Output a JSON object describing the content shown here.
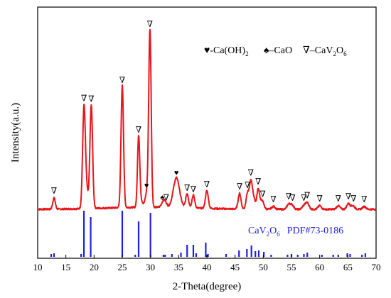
{
  "chart_data": {
    "type": "line",
    "xlabel": "2-Theta(degree)",
    "ylabel": "Intensity(a.u.)",
    "xlim": [
      10,
      70
    ],
    "x_ticks": [
      10,
      15,
      20,
      25,
      30,
      35,
      40,
      45,
      50,
      55,
      60,
      65,
      70
    ],
    "legend": {
      "placement": "top-right",
      "entries": [
        {
          "symbol": "♥",
          "label": "-Ca(OH)",
          "sub": "2"
        },
        {
          "symbol": "♠",
          "label": "–CaO",
          "sub": ""
        },
        {
          "symbol": "∇",
          "label": "–CaV",
          "sub": "2",
          "label2": "O",
          "sub2": "6"
        }
      ]
    },
    "reference": {
      "label_main": "CaV",
      "label_sub1": "2",
      "label_o": "O",
      "label_sub2": "6",
      "label_pdf": "PDF#73-0186",
      "color": "#1f1fe0",
      "lines": [
        {
          "x": 12.4,
          "h": 4
        },
        {
          "x": 12.9,
          "h": 5
        },
        {
          "x": 17.7,
          "h": 4
        },
        {
          "x": 18.2,
          "h": 65
        },
        {
          "x": 19.4,
          "h": 56
        },
        {
          "x": 25.0,
          "h": 65
        },
        {
          "x": 27.3,
          "h": 3
        },
        {
          "x": 27.9,
          "h": 50
        },
        {
          "x": 30.0,
          "h": 62
        },
        {
          "x": 32.3,
          "h": 3
        },
        {
          "x": 32.6,
          "h": 3
        },
        {
          "x": 33.8,
          "h": 4
        },
        {
          "x": 35.4,
          "h": 6
        },
        {
          "x": 36.5,
          "h": 17
        },
        {
          "x": 37.6,
          "h": 17
        },
        {
          "x": 38.1,
          "h": 5
        },
        {
          "x": 39.8,
          "h": 20
        },
        {
          "x": 40.2,
          "h": 4
        },
        {
          "x": 43.4,
          "h": 4
        },
        {
          "x": 45.7,
          "h": 9
        },
        {
          "x": 47.1,
          "h": 11
        },
        {
          "x": 47.9,
          "h": 16
        },
        {
          "x": 48.6,
          "h": 8
        },
        {
          "x": 49.2,
          "h": 9
        },
        {
          "x": 50.1,
          "h": 7
        },
        {
          "x": 51.4,
          "h": 3
        },
        {
          "x": 54.3,
          "h": 3
        },
        {
          "x": 55.0,
          "h": 4
        },
        {
          "x": 56.1,
          "h": 3
        },
        {
          "x": 57.2,
          "h": 4
        },
        {
          "x": 57.8,
          "h": 6
        },
        {
          "x": 60.4,
          "h": 3
        },
        {
          "x": 62.4,
          "h": 3
        },
        {
          "x": 63.3,
          "h": 3
        },
        {
          "x": 64.9,
          "h": 5
        },
        {
          "x": 65.4,
          "h": 4
        },
        {
          "x": 67.5,
          "h": 3
        },
        {
          "x": 68.1,
          "h": 5
        }
      ]
    },
    "pattern": {
      "color": "#e8161b",
      "peaks": [
        {
          "x": 12.9,
          "h": 16,
          "w": 0.22
        },
        {
          "x": 18.2,
          "h": 135,
          "w": 0.24
        },
        {
          "x": 18.6,
          "h": 28,
          "w": 0.3
        },
        {
          "x": 19.5,
          "h": 145,
          "w": 0.24
        },
        {
          "x": 25.0,
          "h": 172,
          "w": 0.22
        },
        {
          "x": 27.9,
          "h": 100,
          "w": 0.2
        },
        {
          "x": 28.4,
          "h": 8,
          "w": 0.3
        },
        {
          "x": 29.3,
          "h": 18,
          "w": 0.25
        },
        {
          "x": 29.9,
          "h": 250,
          "w": 0.22
        },
        {
          "x": 32.2,
          "h": 6,
          "w": 0.3
        },
        {
          "x": 32.6,
          "h": 7,
          "w": 0.3
        },
        {
          "x": 34.6,
          "h": 42,
          "w": 0.55
        },
        {
          "x": 36.5,
          "h": 20,
          "w": 0.25
        },
        {
          "x": 37.6,
          "h": 18,
          "w": 0.25
        },
        {
          "x": 40.0,
          "h": 25,
          "w": 0.25
        },
        {
          "x": 45.8,
          "h": 22,
          "w": 0.25
        },
        {
          "x": 47.2,
          "h": 22,
          "w": 0.25
        },
        {
          "x": 47.8,
          "h": 38,
          "w": 0.25
        },
        {
          "x": 48.3,
          "h": 15,
          "w": 0.25
        },
        {
          "x": 49.1,
          "h": 28,
          "w": 0.25
        },
        {
          "x": 49.8,
          "h": 12,
          "w": 0.3
        },
        {
          "x": 51.8,
          "h": 4,
          "w": 0.3
        },
        {
          "x": 54.5,
          "h": 7,
          "w": 0.3
        },
        {
          "x": 55.1,
          "h": 6,
          "w": 0.3
        },
        {
          "x": 57.2,
          "h": 5,
          "w": 0.3
        },
        {
          "x": 57.8,
          "h": 9,
          "w": 0.3
        },
        {
          "x": 60.0,
          "h": 5,
          "w": 0.3
        },
        {
          "x": 63.3,
          "h": 5,
          "w": 0.3
        },
        {
          "x": 65.1,
          "h": 8,
          "w": 0.3
        },
        {
          "x": 65.9,
          "h": 5,
          "w": 0.3
        },
        {
          "x": 67.9,
          "h": 4,
          "w": 0.3
        }
      ]
    },
    "annotations": [
      {
        "symbol": "∇",
        "x": 12.9
      },
      {
        "symbol": "∇",
        "x": 18.2
      },
      {
        "symbol": "∇",
        "x": 19.5
      },
      {
        "symbol": "∇",
        "x": 25.0
      },
      {
        "symbol": "∇",
        "x": 27.9
      },
      {
        "symbol": "♥",
        "x": 29.3
      },
      {
        "symbol": "∇",
        "x": 29.9
      },
      {
        "symbol": "♠",
        "x": 32.1
      },
      {
        "symbol": "∇",
        "x": 32.8
      },
      {
        "symbol": "♥",
        "x": 34.6
      },
      {
        "symbol": "∇",
        "x": 36.5
      },
      {
        "symbol": "∇",
        "x": 37.6
      },
      {
        "symbol": "∇",
        "x": 40.0
      },
      {
        "symbol": "∇",
        "x": 45.8
      },
      {
        "symbol": "∇",
        "x": 47.2
      },
      {
        "symbol": "∇",
        "x": 47.8
      },
      {
        "symbol": "∇",
        "x": 49.1
      },
      {
        "symbol": "∇",
        "x": 49.9
      },
      {
        "symbol": "∇",
        "x": 51.8
      },
      {
        "symbol": "∇",
        "x": 54.5
      },
      {
        "symbol": "∇",
        "x": 55.2
      },
      {
        "symbol": "∇",
        "x": 57.2
      },
      {
        "symbol": "∇",
        "x": 57.8
      },
      {
        "symbol": "∇",
        "x": 60.0
      },
      {
        "symbol": "∇",
        "x": 63.3
      },
      {
        "symbol": "∇",
        "x": 65.1
      },
      {
        "symbol": "∇",
        "x": 66.0
      },
      {
        "symbol": "∇",
        "x": 67.9
      }
    ]
  }
}
